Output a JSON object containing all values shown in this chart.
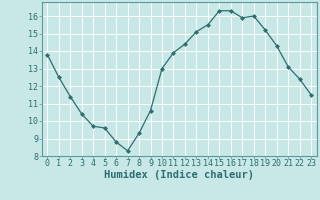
{
  "x": [
    0,
    1,
    2,
    3,
    4,
    5,
    6,
    7,
    8,
    9,
    10,
    11,
    12,
    13,
    14,
    15,
    16,
    17,
    18,
    19,
    20,
    21,
    22,
    23
  ],
  "y": [
    13.8,
    12.5,
    11.4,
    10.4,
    9.7,
    9.6,
    8.8,
    8.3,
    9.3,
    10.6,
    13.0,
    13.9,
    14.4,
    15.1,
    15.5,
    16.3,
    16.3,
    15.9,
    16.0,
    15.2,
    14.3,
    13.1,
    12.4,
    11.5
  ],
  "line_color": "#2d6e6e",
  "marker": "D",
  "marker_size": 2.0,
  "bg_color": "#c8e8e8",
  "grid_color": "#ffffff",
  "xlabel": "Humidex (Indice chaleur)",
  "xlim": [
    -0.5,
    23.5
  ],
  "ylim": [
    8,
    16.8
  ],
  "yticks": [
    8,
    9,
    10,
    11,
    12,
    13,
    14,
    15,
    16
  ],
  "xticks": [
    0,
    1,
    2,
    3,
    4,
    5,
    6,
    7,
    8,
    9,
    10,
    11,
    12,
    13,
    14,
    15,
    16,
    17,
    18,
    19,
    20,
    21,
    22,
    23
  ],
  "xlabel_fontsize": 7.5,
  "tick_fontsize": 6.0
}
